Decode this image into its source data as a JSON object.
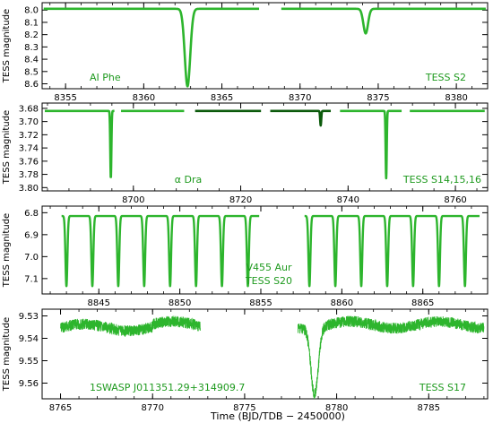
{
  "figure": {
    "xlabel": "Time   (BJD/TDB − 2450000)",
    "ylabel": "TESS magnitude",
    "colors": {
      "light": "#2db52d",
      "dark": "#0b5a0b",
      "text": "#1f9a1f",
      "axis": "#000000"
    }
  },
  "chart_data": [
    {
      "type": "line",
      "title": "AI Phe",
      "sector_label": "TESS S2",
      "xlim": [
        8353.5,
        8382.0
      ],
      "ylim": [
        8.64,
        7.94
      ],
      "xticks": [
        8355,
        8360,
        8365,
        8370,
        8375,
        8380
      ],
      "yticks": [
        8.0,
        8.1,
        8.2,
        8.3,
        8.4,
        8.5,
        8.6
      ],
      "ytick_labels": [
        "8.0",
        "8.1",
        "8.2",
        "8.3",
        "8.4",
        "8.5",
        "8.6"
      ],
      "segments": [
        [
          8353.6,
          8367.4
        ],
        [
          8368.8,
          8381.9
        ]
      ],
      "baseline": 7.99,
      "eclipses": [
        {
          "center": 8362.8,
          "half_width": 0.35,
          "depth": 0.63
        },
        {
          "center": 8374.2,
          "half_width": 0.3,
          "depth": 0.2
        }
      ]
    },
    {
      "type": "line",
      "title": "α Dra",
      "sector_label": "TESS S14,15,16",
      "xlim": [
        8683.0,
        8766.0
      ],
      "ylim": [
        3.805,
        3.672
      ],
      "xticks": [
        8700,
        8720,
        8740,
        8760
      ],
      "yticks": [
        3.68,
        3.7,
        3.72,
        3.74,
        3.76,
        3.78,
        3.8
      ],
      "ytick_labels": [
        "3.68",
        "3.70",
        "3.72",
        "3.74",
        "3.76",
        "3.78",
        "3.80"
      ],
      "series": [
        {
          "name": "S14",
          "color": "light",
          "segments": [
            [
              8683.5,
              8696.5
            ],
            [
              8697.7,
              8709.5
            ]
          ]
        },
        {
          "name": "S15",
          "color": "dark",
          "segments": [
            [
              8711.5,
              8723.8
            ],
            [
              8725.5,
              8736.8
            ]
          ]
        },
        {
          "name": "S16",
          "color": "light",
          "segments": [
            [
              8738.5,
              8750.0
            ],
            [
              8751.5,
              8765.5
            ]
          ]
        }
      ],
      "baseline": 3.684,
      "eclipses": [
        {
          "center": 8695.8,
          "half_width": 0.2,
          "depth": 0.102
        },
        {
          "center": 8734.9,
          "half_width": 0.2,
          "depth": 0.022
        },
        {
          "center": 8747.1,
          "half_width": 0.2,
          "depth": 0.102
        }
      ]
    },
    {
      "type": "scatter",
      "title": "V455 Aur",
      "sector_label": "TESS S20",
      "xlim": [
        8841.5,
        8869.0
      ],
      "ylim": [
        7.17,
        6.77
      ],
      "xticks": [
        8845,
        8850,
        8855,
        8860,
        8865
      ],
      "yticks": [
        6.8,
        6.9,
        7.0,
        7.1
      ],
      "ytick_labels": [
        "6.8",
        "6.9",
        "7.0",
        "7.1"
      ],
      "segments": [
        [
          8842.7,
          8854.9
        ],
        [
          8857.7,
          8868.5
        ]
      ],
      "baseline": 6.815,
      "eclipse_depth": 0.32,
      "eclipse_half_width": 0.12,
      "eclipse_times": [
        8843.0,
        8844.6,
        8846.2,
        8847.8,
        8849.4,
        8851.0,
        8852.6,
        8854.2,
        8858.0,
        8859.6,
        8861.2,
        8862.8,
        8864.4,
        8866.0,
        8867.6
      ]
    },
    {
      "type": "scatter",
      "title": "1SWASP J011351.29+314909.7",
      "sector_label": "TESS S17",
      "xlim": [
        8764.0,
        8788.2
      ],
      "ylim": [
        9.567,
        9.527
      ],
      "xticks": [
        8765,
        8770,
        8775,
        8780,
        8785
      ],
      "yticks": [
        9.53,
        9.54,
        9.55,
        9.56
      ],
      "ytick_labels": [
        "9.53",
        "9.54",
        "9.55",
        "9.56"
      ],
      "segments": [
        [
          8765.0,
          8772.6
        ],
        [
          8777.9,
          8788.0
        ]
      ],
      "baseline": 9.534,
      "scatter_amplitude": 0.0025,
      "eclipse": {
        "center": 8778.8,
        "half_width": 0.4,
        "depth": 0.03
      }
    }
  ]
}
